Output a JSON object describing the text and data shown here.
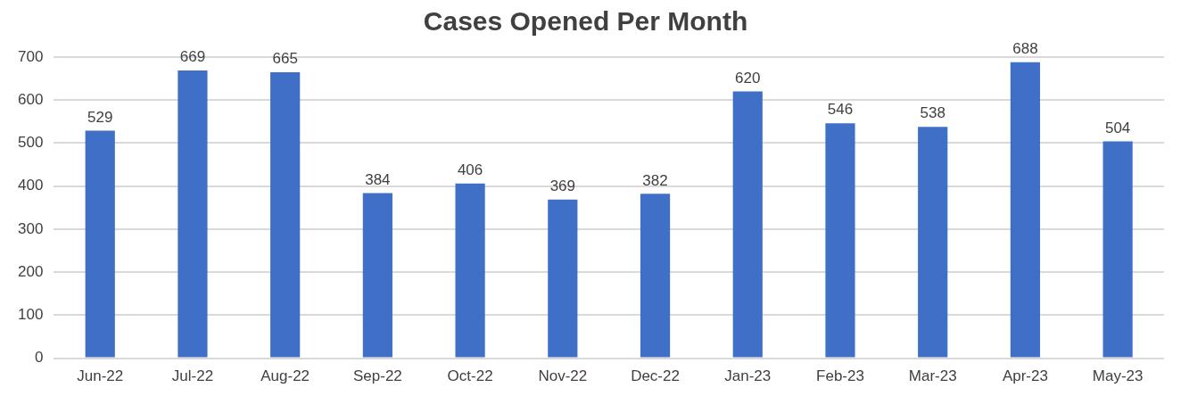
{
  "chart_data": {
    "type": "bar",
    "title": "Cases Opened Per Month",
    "categories": [
      "Jun-22",
      "Jul-22",
      "Aug-22",
      "Sep-22",
      "Oct-22",
      "Nov-22",
      "Dec-22",
      "Jan-23",
      "Feb-23",
      "Mar-23",
      "Apr-23",
      "May-23"
    ],
    "values": [
      529,
      669,
      665,
      384,
      406,
      369,
      382,
      620,
      546,
      538,
      688,
      504
    ],
    "color": "#3f6fc6",
    "ylim": [
      0,
      700
    ],
    "yticks": [
      0,
      100,
      200,
      300,
      400,
      500,
      600,
      700
    ],
    "grid": "y",
    "data_labels": true
  }
}
